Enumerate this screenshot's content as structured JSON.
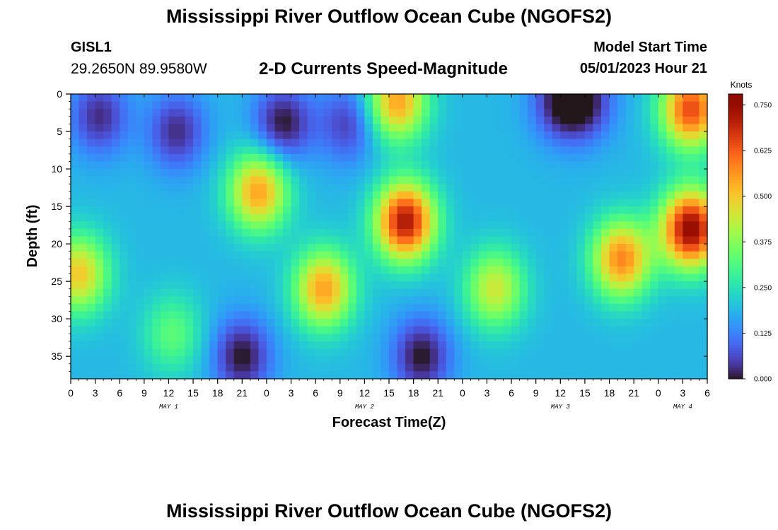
{
  "header": {
    "title": "Mississippi River Outflow Ocean Cube (NGOFS2)",
    "station_id": "GISL1",
    "station_coords": "29.2650N  89.9580W",
    "plot_title": "2-D Currents Speed-Magnitude",
    "start_label": "Model Start Time",
    "start_value": "05/01/2023 Hour 21"
  },
  "footer": {
    "title": "Mississippi River Outflow Ocean Cube (NGOFS2)"
  },
  "chart_data": {
    "type": "heatmap",
    "xlabel": "Forecast Time(Z)",
    "ylabel": "Depth (ft)",
    "x_tick_labels": [
      "0",
      "3",
      "6",
      "9",
      "12",
      "15",
      "18",
      "21",
      "0",
      "3",
      "6",
      "9",
      "12",
      "15",
      "18",
      "21",
      "0",
      "3",
      "6",
      "9",
      "12",
      "15",
      "18",
      "21",
      "0",
      "3",
      "6"
    ],
    "x_range_hours": [
      0,
      78
    ],
    "day_labels": [
      {
        "label": "MAY 1",
        "hour": 12
      },
      {
        "label": "MAY 2",
        "hour": 36
      },
      {
        "label": "MAY 3",
        "hour": 60
      },
      {
        "label": "MAY 4",
        "hour": 75
      }
    ],
    "y_tick_labels": [
      "0",
      "5",
      "10",
      "15",
      "20",
      "25",
      "30",
      "35"
    ],
    "y_ticks": [
      0,
      5,
      10,
      15,
      20,
      25,
      30,
      35
    ],
    "y_range_ft": [
      0,
      38
    ],
    "y_inverted": true,
    "colorbar": {
      "title": "Knots",
      "ticks": [
        "0.000",
        "0.125",
        "0.250",
        "0.375",
        "0.500",
        "0.625",
        "0.750"
      ],
      "range": [
        0,
        0.78
      ],
      "colormap": "turbo"
    },
    "field_centers_knots": [
      {
        "hour": 3.5,
        "depth": 3,
        "speed": 0.03
      },
      {
        "hour": 13,
        "depth": 5,
        "speed": 0.03
      },
      {
        "hour": 26,
        "depth": 4,
        "speed": 0.0
      },
      {
        "hour": 34,
        "depth": 4,
        "speed": 0.05
      },
      {
        "hour": 60,
        "depth": 1,
        "speed": 0.03
      },
      {
        "hour": 63,
        "depth": 1,
        "speed": 0.03
      },
      {
        "hour": 21,
        "depth": 35,
        "speed": 0.0
      },
      {
        "hour": 43,
        "depth": 35,
        "speed": 0.0
      },
      {
        "hour": 1,
        "depth": 24,
        "speed": 0.5
      },
      {
        "hour": 12.5,
        "depth": 32,
        "speed": 0.33
      },
      {
        "hour": 23,
        "depth": 13,
        "speed": 0.55
      },
      {
        "hour": 31,
        "depth": 26,
        "speed": 0.55
      },
      {
        "hour": 41,
        "depth": 17,
        "speed": 0.72
      },
      {
        "hour": 40,
        "depth": 1,
        "speed": 0.55
      },
      {
        "hour": 52,
        "depth": 26,
        "speed": 0.45
      },
      {
        "hour": 67.5,
        "depth": 22,
        "speed": 0.58
      },
      {
        "hour": 76,
        "depth": 18,
        "speed": 0.76
      },
      {
        "hour": 76,
        "depth": 2,
        "speed": 0.65
      }
    ]
  }
}
